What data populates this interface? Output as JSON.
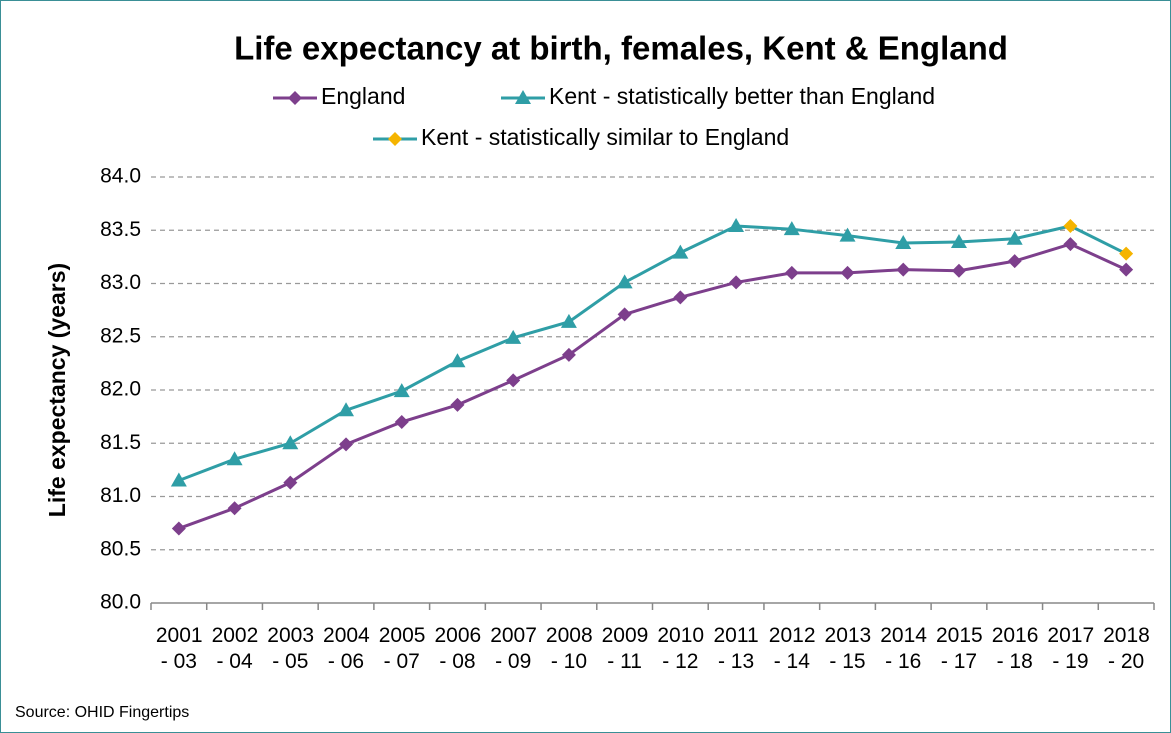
{
  "chart_data": {
    "type": "line",
    "title": "Life expectancy at birth, females, Kent & England",
    "y_label": "Life expectancy (years)",
    "source": "Source: OHID Fingertips",
    "categories": [
      "2001 - 03",
      "2002 - 04",
      "2003 - 05",
      "2004 - 06",
      "2005 - 07",
      "2006 - 08",
      "2007 - 09",
      "2008 - 10",
      "2009 - 11",
      "2010 - 12",
      "2011 - 13",
      "2012 - 14",
      "2013 - 15",
      "2014 - 16",
      "2015 - 17",
      "2016 - 18",
      "2017 - 19",
      "2018 - 20"
    ],
    "series": [
      {
        "name": "England",
        "color": "#7d3f8c",
        "marker": "diamond",
        "values": [
          80.7,
          80.89,
          81.13,
          81.49,
          81.7,
          81.86,
          82.09,
          82.33,
          82.71,
          82.87,
          83.01,
          83.1,
          83.1,
          83.13,
          83.12,
          83.21,
          83.37,
          83.13
        ]
      },
      {
        "name": "Kent - statistically better than England",
        "color": "#2f9ea6",
        "marker": "triangle",
        "values": [
          81.15,
          81.35,
          81.5,
          81.81,
          81.99,
          82.27,
          82.49,
          82.64,
          83.01,
          83.29,
          83.54,
          83.51,
          83.45,
          83.38,
          83.39,
          83.42,
          null,
          null
        ]
      },
      {
        "name": "Kent - statistically similar to England",
        "color": "#f5b400",
        "line_color": "#2f9ea6",
        "marker": "diamond",
        "values": [
          null,
          null,
          null,
          null,
          null,
          null,
          null,
          null,
          null,
          null,
          null,
          null,
          null,
          null,
          null,
          null,
          83.54,
          83.28
        ]
      }
    ],
    "ylim": [
      80,
      84
    ],
    "yticks": [
      {
        "value": 80,
        "label": "80.0"
      },
      {
        "value": 80.5,
        "label": "80.5"
      },
      {
        "value": 81,
        "label": "81.0"
      },
      {
        "value": 81.5,
        "label": "81.5"
      },
      {
        "value": 82,
        "label": "82.0"
      },
      {
        "value": 82.5,
        "label": "82.5"
      },
      {
        "value": 83,
        "label": "83.0"
      },
      {
        "value": 83.5,
        "label": "83.5"
      },
      {
        "value": 84,
        "label": "84.0"
      }
    ],
    "grid": true
  }
}
